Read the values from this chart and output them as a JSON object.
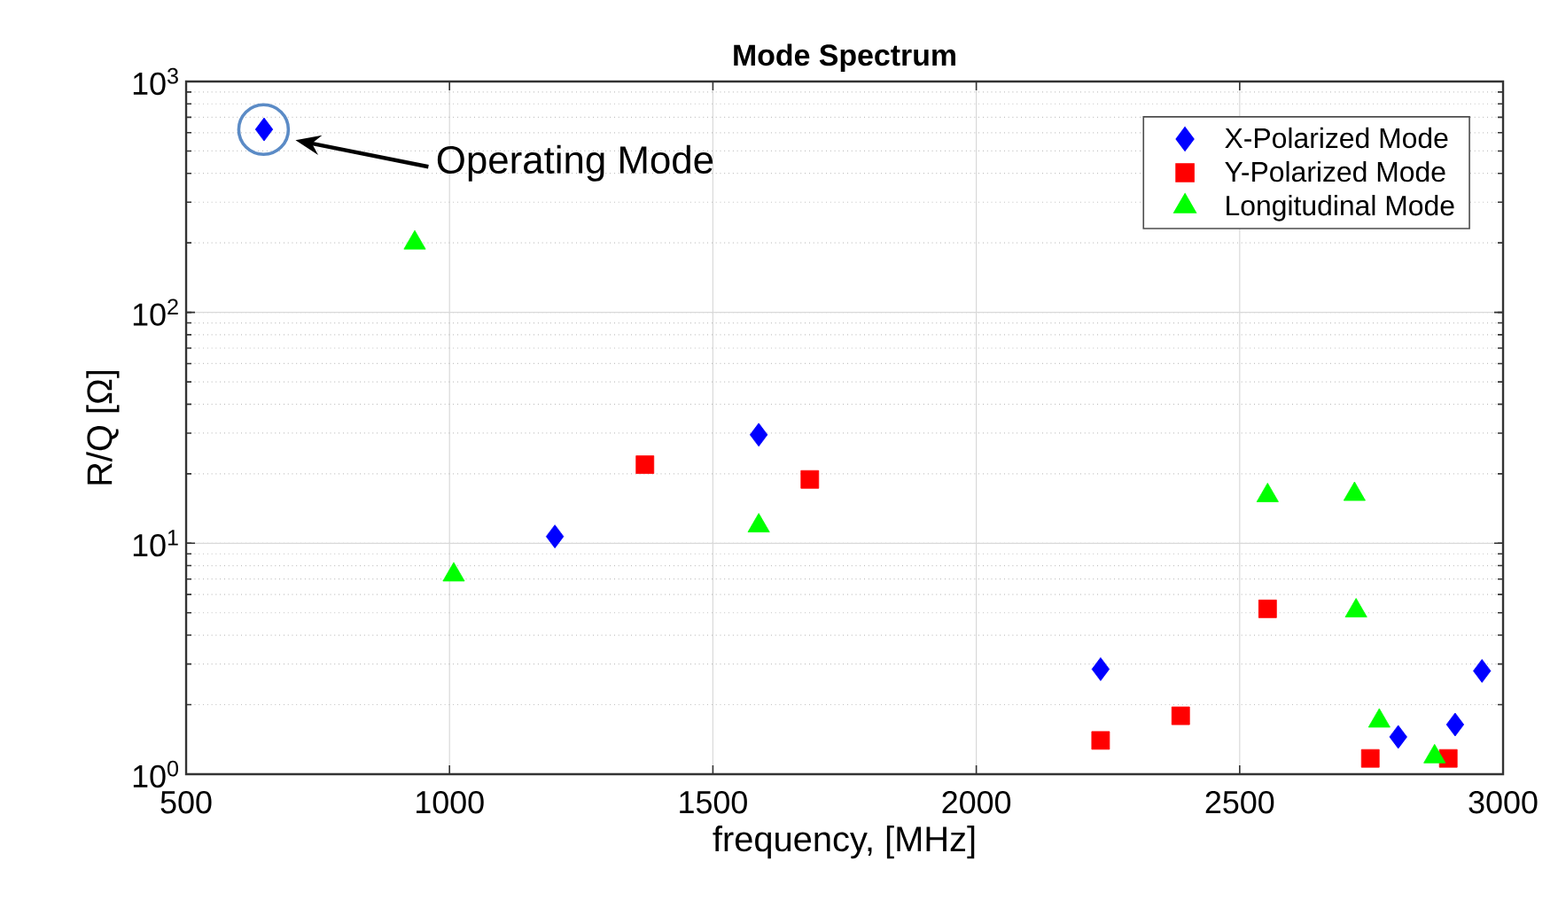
{
  "chart_data": {
    "type": "scatter",
    "title": "Mode Spectrum",
    "xlabel": "frequency, [MHz]",
    "ylabel": "R/Q [Ω]",
    "xlim": [
      500,
      3000
    ],
    "xticks": [
      500,
      1000,
      1500,
      2000,
      2500,
      3000
    ],
    "ylim": [
      1,
      1000
    ],
    "yticks": [
      {
        "value": 1,
        "label": "10$^{0}$"
      },
      {
        "value": 10,
        "label": "10$^{1}$"
      },
      {
        "value": 100,
        "label": "10$^{2}$"
      },
      {
        "value": 1000,
        "label": "10$^{3}$"
      }
    ],
    "log": "y",
    "grid": true,
    "legend": "top right",
    "series": [
      {
        "name": "X-Polarized Mode",
        "color": "#0000ff",
        "marker": "diamond",
        "x": [
          648,
          1200,
          1587,
          2236,
          2801,
          2909,
          2960
        ],
        "values": [
          620,
          10.7,
          29.5,
          2.85,
          1.45,
          1.64,
          2.8
        ]
      },
      {
        "name": "Y-Polarized Mode",
        "color": "#ff0000",
        "marker": "square",
        "x": [
          1371,
          1684,
          2236,
          2388,
          2553,
          2748,
          2896
        ],
        "values": [
          21.9,
          18.9,
          1.4,
          1.79,
          5.2,
          1.17,
          1.17
        ]
      },
      {
        "name": "Longitudinal Mode",
        "color": "#00ff00",
        "marker": "triangle",
        "x": [
          934,
          1008,
          1587,
          2553,
          2718,
          2721,
          2765,
          2870
        ],
        "values": [
          200,
          7.3,
          11.9,
          16.1,
          16.3,
          5.1,
          1.7,
          1.19
        ]
      }
    ],
    "annotations": [
      "Operating Mode"
    ]
  }
}
